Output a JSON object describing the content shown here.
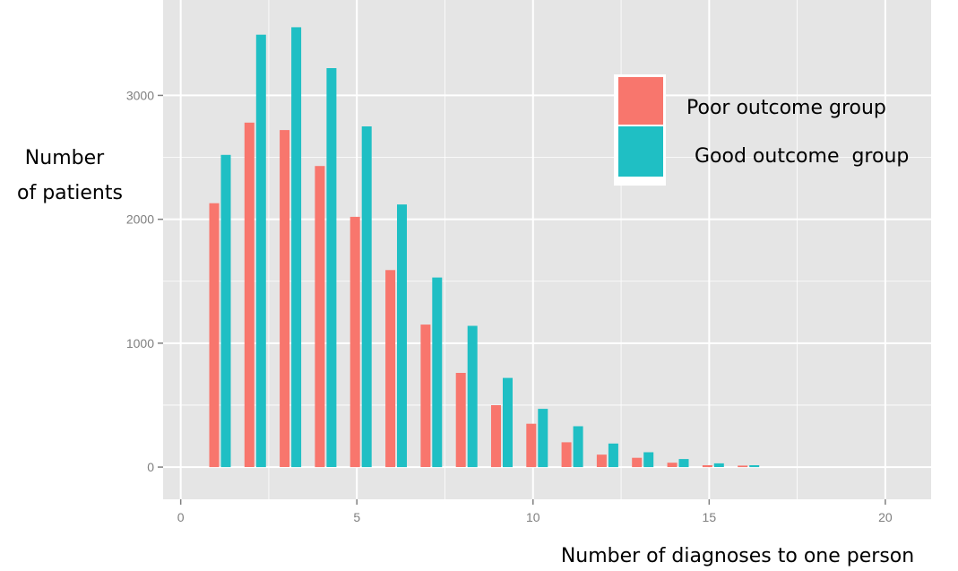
{
  "chart_data": {
    "type": "bar",
    "xlabel": "Number of  diagnoses to one person",
    "ylabel": [
      "Number",
      "of patients"
    ],
    "x": [
      1,
      2,
      3,
      4,
      5,
      6,
      7,
      8,
      9,
      10,
      11,
      12,
      13,
      14,
      15,
      16
    ],
    "series": [
      {
        "name": "Poor outcome group",
        "color": "#F8766D",
        "values": [
          2130,
          2780,
          2720,
          2430,
          2020,
          1590,
          1150,
          760,
          500,
          350,
          200,
          100,
          75,
          35,
          15,
          12
        ]
      },
      {
        "name": "Good outcome  group",
        "color": "#1FBFC4",
        "values": [
          2520,
          3490,
          3550,
          3220,
          2750,
          2120,
          1530,
          1140,
          720,
          470,
          330,
          190,
          120,
          65,
          30,
          15
        ]
      }
    ],
    "xlim": [
      -0.5,
      21.3
    ],
    "ylim": [
      -260,
      3770
    ],
    "xticks": [
      0,
      5,
      10,
      15,
      20
    ],
    "yticks": [
      0,
      1000,
      2000,
      3000
    ],
    "xtick_labels": [
      "0",
      "5",
      "10",
      "15",
      "20"
    ],
    "ytick_labels": [
      "0",
      "1000",
      "2000",
      "3000"
    ],
    "grid": true,
    "legend_position": "top-right",
    "panel_background": "#E5E5E5",
    "grid_color": "#FFFFFF"
  }
}
